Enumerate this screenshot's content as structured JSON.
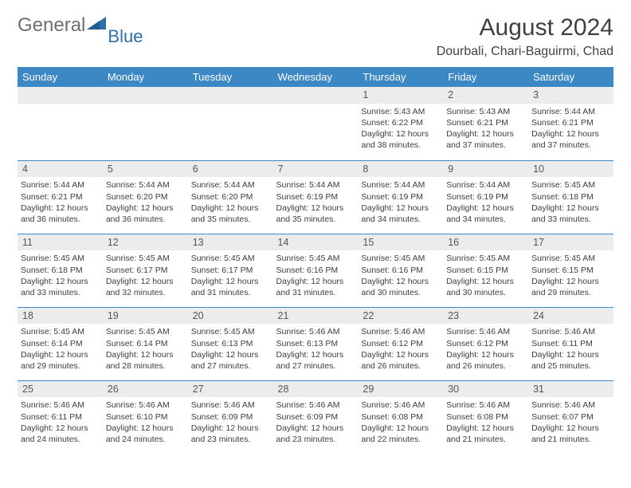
{
  "logo": {
    "text_main": "General",
    "text_sub": "Blue",
    "shape_color": "#2f6fa8"
  },
  "header": {
    "month_title": "August 2024",
    "location": "Dourbali, Chari-Baguirmi, Chad"
  },
  "colors": {
    "header_bg": "#3b88c4",
    "daynum_bg": "#ececec",
    "rule": "#3b88c4"
  },
  "weekdays": [
    "Sunday",
    "Monday",
    "Tuesday",
    "Wednesday",
    "Thursday",
    "Friday",
    "Saturday"
  ],
  "weeks": [
    [
      null,
      null,
      null,
      null,
      {
        "n": "1",
        "sr": "5:43 AM",
        "ss": "6:22 PM",
        "dl": "12 hours and 38 minutes."
      },
      {
        "n": "2",
        "sr": "5:43 AM",
        "ss": "6:21 PM",
        "dl": "12 hours and 37 minutes."
      },
      {
        "n": "3",
        "sr": "5:44 AM",
        "ss": "6:21 PM",
        "dl": "12 hours and 37 minutes."
      }
    ],
    [
      {
        "n": "4",
        "sr": "5:44 AM",
        "ss": "6:21 PM",
        "dl": "12 hours and 36 minutes."
      },
      {
        "n": "5",
        "sr": "5:44 AM",
        "ss": "6:20 PM",
        "dl": "12 hours and 36 minutes."
      },
      {
        "n": "6",
        "sr": "5:44 AM",
        "ss": "6:20 PM",
        "dl": "12 hours and 35 minutes."
      },
      {
        "n": "7",
        "sr": "5:44 AM",
        "ss": "6:19 PM",
        "dl": "12 hours and 35 minutes."
      },
      {
        "n": "8",
        "sr": "5:44 AM",
        "ss": "6:19 PM",
        "dl": "12 hours and 34 minutes."
      },
      {
        "n": "9",
        "sr": "5:44 AM",
        "ss": "6:19 PM",
        "dl": "12 hours and 34 minutes."
      },
      {
        "n": "10",
        "sr": "5:45 AM",
        "ss": "6:18 PM",
        "dl": "12 hours and 33 minutes."
      }
    ],
    [
      {
        "n": "11",
        "sr": "5:45 AM",
        "ss": "6:18 PM",
        "dl": "12 hours and 33 minutes."
      },
      {
        "n": "12",
        "sr": "5:45 AM",
        "ss": "6:17 PM",
        "dl": "12 hours and 32 minutes."
      },
      {
        "n": "13",
        "sr": "5:45 AM",
        "ss": "6:17 PM",
        "dl": "12 hours and 31 minutes."
      },
      {
        "n": "14",
        "sr": "5:45 AM",
        "ss": "6:16 PM",
        "dl": "12 hours and 31 minutes."
      },
      {
        "n": "15",
        "sr": "5:45 AM",
        "ss": "6:16 PM",
        "dl": "12 hours and 30 minutes."
      },
      {
        "n": "16",
        "sr": "5:45 AM",
        "ss": "6:15 PM",
        "dl": "12 hours and 30 minutes."
      },
      {
        "n": "17",
        "sr": "5:45 AM",
        "ss": "6:15 PM",
        "dl": "12 hours and 29 minutes."
      }
    ],
    [
      {
        "n": "18",
        "sr": "5:45 AM",
        "ss": "6:14 PM",
        "dl": "12 hours and 29 minutes."
      },
      {
        "n": "19",
        "sr": "5:45 AM",
        "ss": "6:14 PM",
        "dl": "12 hours and 28 minutes."
      },
      {
        "n": "20",
        "sr": "5:45 AM",
        "ss": "6:13 PM",
        "dl": "12 hours and 27 minutes."
      },
      {
        "n": "21",
        "sr": "5:46 AM",
        "ss": "6:13 PM",
        "dl": "12 hours and 27 minutes."
      },
      {
        "n": "22",
        "sr": "5:46 AM",
        "ss": "6:12 PM",
        "dl": "12 hours and 26 minutes."
      },
      {
        "n": "23",
        "sr": "5:46 AM",
        "ss": "6:12 PM",
        "dl": "12 hours and 26 minutes."
      },
      {
        "n": "24",
        "sr": "5:46 AM",
        "ss": "6:11 PM",
        "dl": "12 hours and 25 minutes."
      }
    ],
    [
      {
        "n": "25",
        "sr": "5:46 AM",
        "ss": "6:11 PM",
        "dl": "12 hours and 24 minutes."
      },
      {
        "n": "26",
        "sr": "5:46 AM",
        "ss": "6:10 PM",
        "dl": "12 hours and 24 minutes."
      },
      {
        "n": "27",
        "sr": "5:46 AM",
        "ss": "6:09 PM",
        "dl": "12 hours and 23 minutes."
      },
      {
        "n": "28",
        "sr": "5:46 AM",
        "ss": "6:09 PM",
        "dl": "12 hours and 23 minutes."
      },
      {
        "n": "29",
        "sr": "5:46 AM",
        "ss": "6:08 PM",
        "dl": "12 hours and 22 minutes."
      },
      {
        "n": "30",
        "sr": "5:46 AM",
        "ss": "6:08 PM",
        "dl": "12 hours and 21 minutes."
      },
      {
        "n": "31",
        "sr": "5:46 AM",
        "ss": "6:07 PM",
        "dl": "12 hours and 21 minutes."
      }
    ]
  ],
  "labels": {
    "sunrise": "Sunrise:",
    "sunset": "Sunset:",
    "daylight": "Daylight:"
  }
}
